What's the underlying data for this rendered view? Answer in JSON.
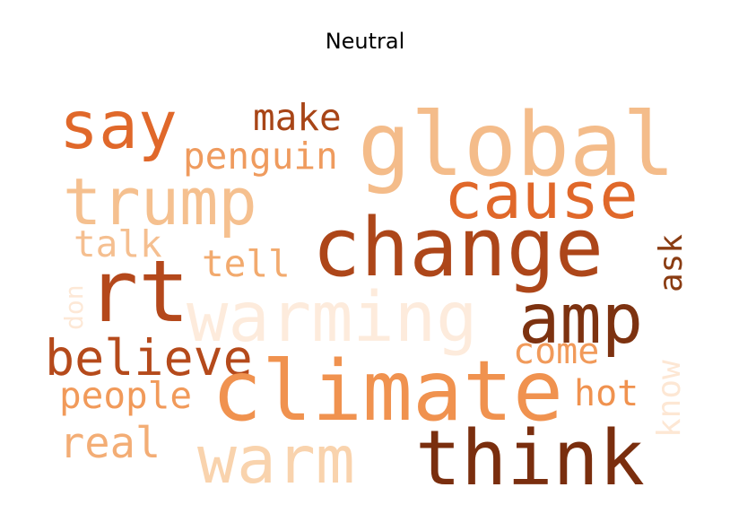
{
  "title": "Neutral",
  "words": [
    {
      "text": "say",
      "color": "#e0682a"
    },
    {
      "text": "make",
      "color": "#a84517"
    },
    {
      "text": "global",
      "color": "#f4bc8a"
    },
    {
      "text": "penguin",
      "color": "#ef9b5e"
    },
    {
      "text": "trump",
      "color": "#f5c08f"
    },
    {
      "text": "cause",
      "color": "#e0682a"
    },
    {
      "text": "change",
      "color": "#ad4619"
    },
    {
      "text": "talk",
      "color": "#f5bf90"
    },
    {
      "text": "tell",
      "color": "#f2aa6e"
    },
    {
      "text": "ask",
      "color": "#8a3c12"
    },
    {
      "text": "rt",
      "color": "#b4481b"
    },
    {
      "text": "don",
      "color": "#fde8d6"
    },
    {
      "text": "warming",
      "color": "#fdebdc"
    },
    {
      "text": "amp",
      "color": "#7d3210"
    },
    {
      "text": "believe",
      "color": "#b54a1b"
    },
    {
      "text": "come",
      "color": "#f19a5a"
    },
    {
      "text": "know",
      "color": "#fde7d4"
    },
    {
      "text": "people",
      "color": "#f19a5a"
    },
    {
      "text": "climate",
      "color": "#f0924f"
    },
    {
      "text": "hot",
      "color": "#f0924f"
    },
    {
      "text": "real",
      "color": "#f3ad75"
    },
    {
      "text": "warm",
      "color": "#f9d3ad"
    },
    {
      "text": "think",
      "color": "#7a2e0e"
    }
  ]
}
